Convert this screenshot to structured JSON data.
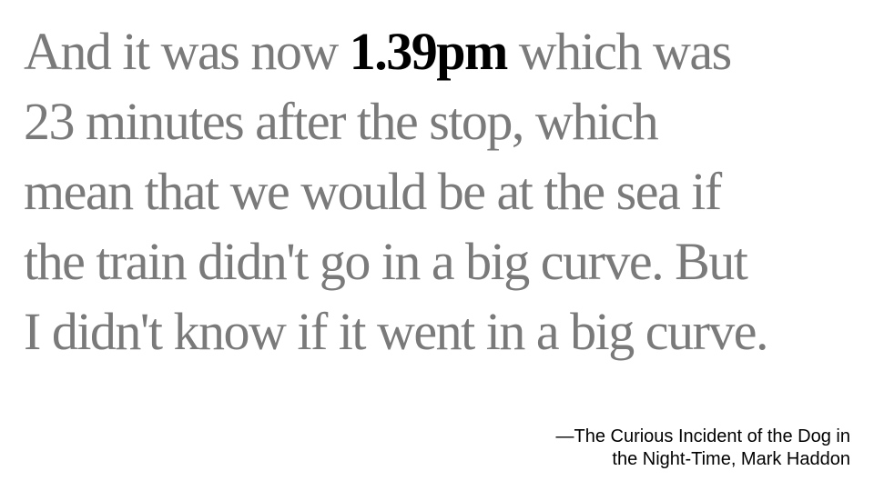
{
  "quote": {
    "line1_before": "And it was now ",
    "highlight": "1.39pm",
    "line1_after": " which was",
    "line2": "23 minutes after the stop, which",
    "line3": "mean that we would be at the sea if",
    "line4": "the train didn't go in a big curve. But",
    "line5": "I didn't know if it went in a big curve."
  },
  "attribution": {
    "line1": "—The Curious Incident of the Dog in",
    "line2": "the Night-Time, Mark Haddon"
  },
  "colors": {
    "quote_text": "#7a7a7a",
    "highlight_text": "#000000",
    "attribution_text": "#000000",
    "background": "#ffffff"
  }
}
